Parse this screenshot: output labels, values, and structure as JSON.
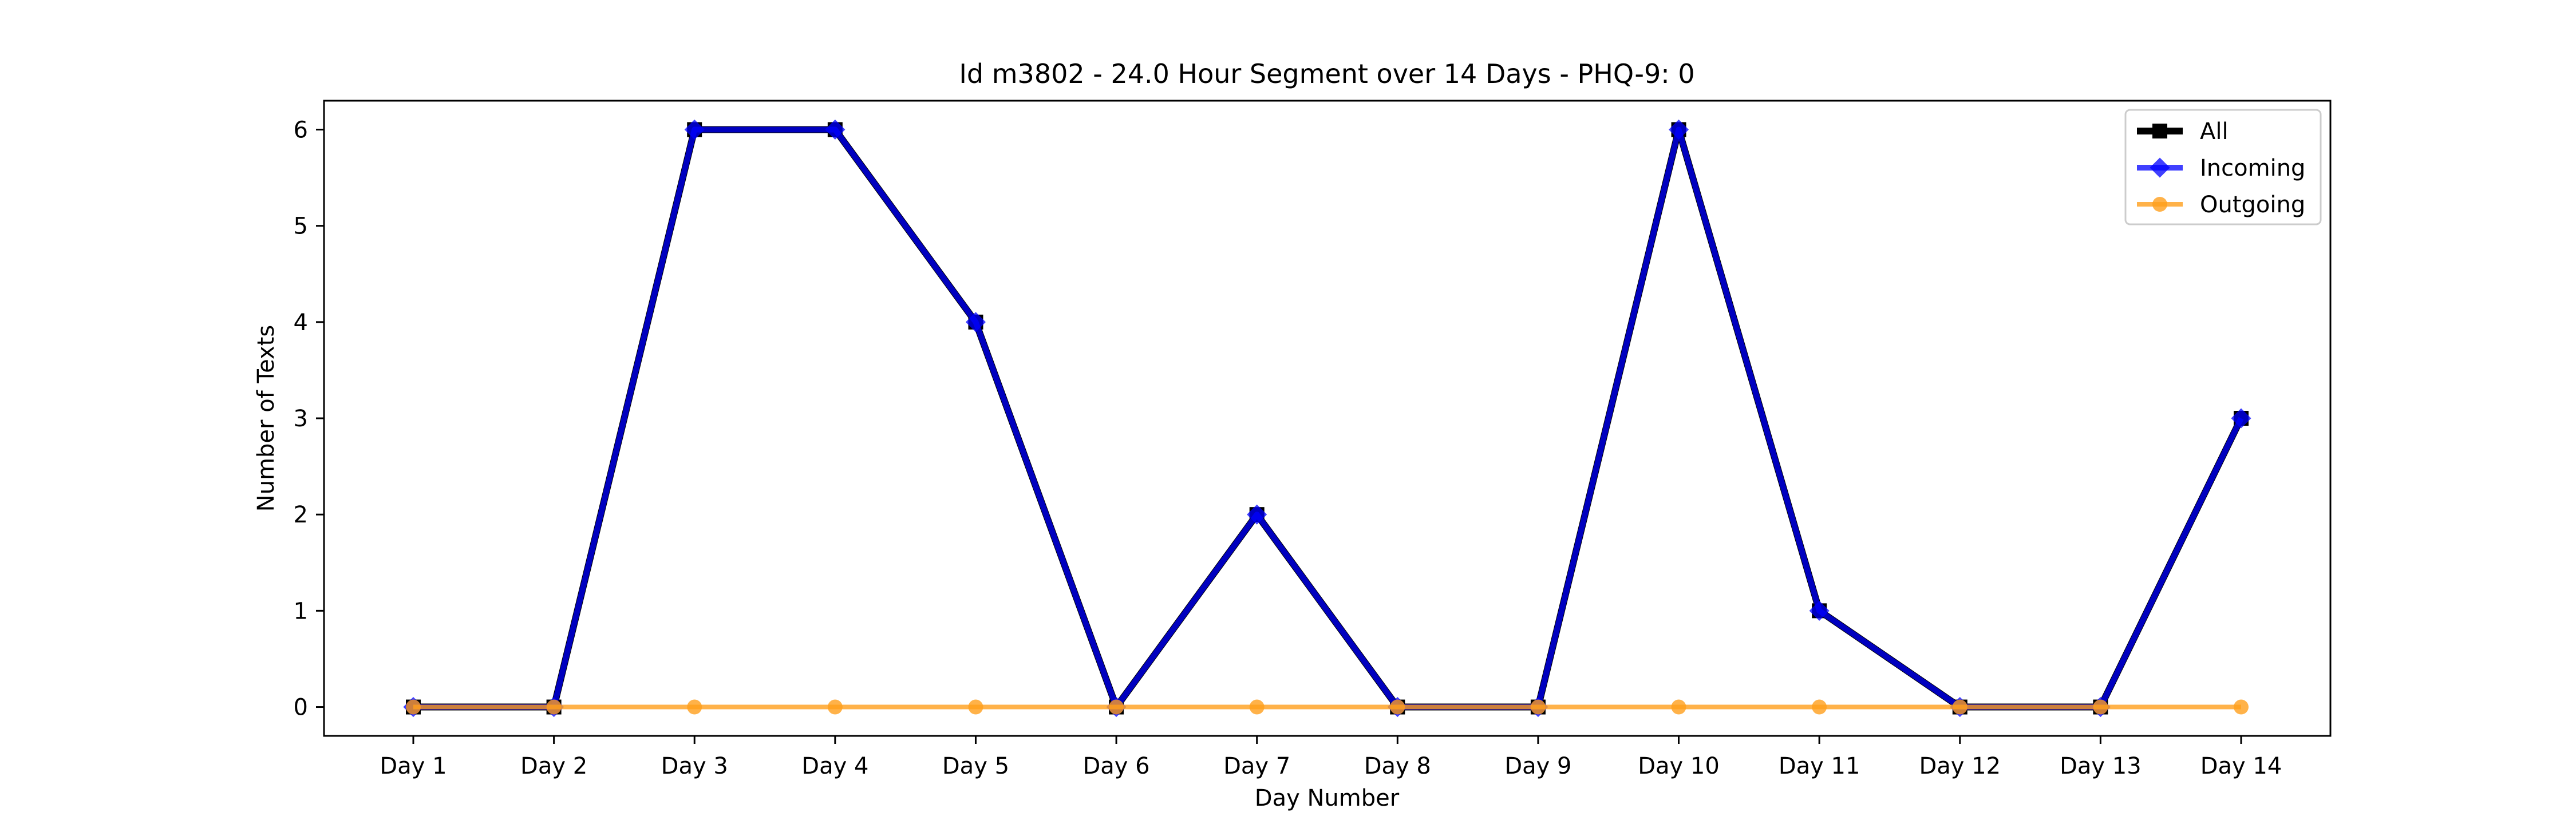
{
  "chart_data": {
    "type": "line",
    "title": "Id m3802 - 24.0 Hour Segment over 14 Days - PHQ-9: 0",
    "xlabel": "Day Number",
    "ylabel": "Number of Texts",
    "categories": [
      "Day 1",
      "Day 2",
      "Day 3",
      "Day 4",
      "Day 5",
      "Day 6",
      "Day 7",
      "Day 8",
      "Day 9",
      "Day 10",
      "Day 11",
      "Day 12",
      "Day 13",
      "Day 14"
    ],
    "ylim": [
      -0.3,
      6.3
    ],
    "yticks": [
      0,
      1,
      2,
      3,
      4,
      5,
      6
    ],
    "grid": false,
    "legend_position": "top-right",
    "series": [
      {
        "name": "All",
        "color": "#000000",
        "marker": "square",
        "values": [
          0,
          0,
          6,
          6,
          4,
          0,
          2,
          0,
          0,
          6,
          1,
          0,
          0,
          3
        ]
      },
      {
        "name": "Incoming",
        "color": "#0000ff",
        "marker": "diamond",
        "values": [
          0,
          0,
          6,
          6,
          4,
          0,
          2,
          0,
          0,
          6,
          1,
          0,
          0,
          3
        ]
      },
      {
        "name": "Outgoing",
        "color": "#ff9f1c",
        "marker": "circle",
        "values": [
          0,
          0,
          0,
          0,
          0,
          0,
          0,
          0,
          0,
          0,
          0,
          0,
          0,
          0
        ]
      }
    ]
  }
}
